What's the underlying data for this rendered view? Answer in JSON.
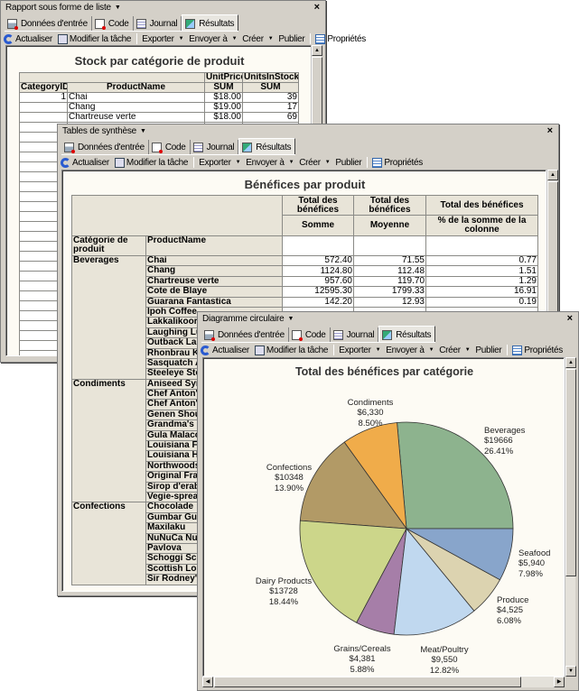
{
  "tabs": [
    "Données d'entrée",
    "Code",
    "Journal",
    "Résultats"
  ],
  "toolbar": {
    "refresh": "Actualiser",
    "modify": "Modifier la tâche",
    "export": "Exporter",
    "send": "Envoyer à",
    "create": "Créer",
    "publish": "Publier",
    "properties": "Propriétés"
  },
  "windows": [
    {
      "title": "Rapport sous forme de liste"
    },
    {
      "title": "Tables de synthèse"
    },
    {
      "title": "Diagramme circulaire"
    }
  ],
  "list_report": {
    "title": "Stock par catégorie de produit",
    "header_top": [
      "UnitPrice",
      "UnitsInStock"
    ],
    "headers": [
      "CategoryID",
      "ProductName",
      "SUM",
      "SUM"
    ],
    "rows": [
      [
        "1",
        "Chai",
        "$18.00",
        "39"
      ],
      [
        "",
        "Chang",
        "$19.00",
        "17"
      ],
      [
        "",
        "Chartreuse verte",
        "$18.00",
        "69"
      ]
    ]
  },
  "summary": {
    "title": "Bénéfices par produit",
    "col_headers": [
      {
        "top": "Total des bénéfices",
        "sub": "Somme"
      },
      {
        "top": "Total des bénéfices",
        "sub": "Moyenne"
      },
      {
        "top": "Total des bénéfices",
        "sub": "% de la somme de la colonne"
      }
    ],
    "row_headers": [
      "Catégorie de produit",
      "ProductName"
    ],
    "groups": [
      {
        "category": "Beverages",
        "products": [
          {
            "name": "Chai",
            "values": [
              "572.40",
              "71.55",
              "0.77"
            ]
          },
          {
            "name": "Chang",
            "values": [
              "1124.80",
              "112.48",
              "1.51"
            ]
          },
          {
            "name": "Chartreuse verte",
            "values": [
              "957.60",
              "119.70",
              "1.29"
            ]
          },
          {
            "name": "Cote de Blaye",
            "values": [
              "12595.30",
              "1799.33",
              "16.91"
            ]
          },
          {
            "name": "Guarana Fantastica",
            "values": [
              "142.20",
              "12.93",
              "0.19"
            ]
          },
          {
            "name": "Ipoh Coffee"
          },
          {
            "name": "Lakkalikoori"
          },
          {
            "name": "Laughing Lu"
          },
          {
            "name": "Outback Lag"
          },
          {
            "name": "Rhonbrau Kl"
          },
          {
            "name": "Sasquatch Al"
          },
          {
            "name": "Steeleye Sto"
          }
        ]
      },
      {
        "category": "Condiments",
        "products": [
          {
            "name": "Aniseed Syru"
          },
          {
            "name": "Chef Anton's"
          },
          {
            "name": "Chef Anton's"
          },
          {
            "name": "Genen Shou"
          },
          {
            "name": "Grandma's B"
          },
          {
            "name": "Gula Malacc"
          },
          {
            "name": "Louisiana Fi Sauce"
          },
          {
            "name": "Louisiana Ho"
          },
          {
            "name": "Northwoods"
          },
          {
            "name": "Original Frar"
          },
          {
            "name": "Sirop d'erabl"
          },
          {
            "name": "Vegie-spreac"
          }
        ]
      },
      {
        "category": "Confections",
        "products": [
          {
            "name": "Chocolade"
          },
          {
            "name": "Gumbar Gun"
          },
          {
            "name": "Maxilaku"
          },
          {
            "name": "NuNuCa NuB"
          },
          {
            "name": "Pavlova"
          },
          {
            "name": "Schoggi Sch"
          },
          {
            "name": "Scottish Lon"
          },
          {
            "name": "Sir Rodney's"
          }
        ]
      }
    ]
  },
  "chart_data": {
    "type": "pie",
    "title": "Total des bénéfices par catégorie",
    "direction": "counterclockwise from 3 o'clock",
    "slices": [
      {
        "label": "Beverages",
        "value": 19666,
        "value_label": "$19666",
        "percent": "26.41%",
        "color": "#8db38e"
      },
      {
        "label": "Condiments",
        "value": 6330,
        "value_label": "$6,330",
        "percent": "8.50%",
        "color": "#f0ac4a"
      },
      {
        "label": "Confections",
        "value": 10348,
        "value_label": "$10348",
        "percent": "13.90%",
        "color": "#b29a66"
      },
      {
        "label": "Dairy Products",
        "value": 13728,
        "value_label": "$13728",
        "percent": "18.44%",
        "color": "#ccd68a"
      },
      {
        "label": "Grains/Cereals",
        "value": 4381,
        "value_label": "$4,381",
        "percent": "5.88%",
        "color": "#a67ea8"
      },
      {
        "label": "Meat/Poultry",
        "value": 9550,
        "value_label": "$9,550",
        "percent": "12.82%",
        "color": "#c0d8ef"
      },
      {
        "label": "Produce",
        "value": 4525,
        "value_label": "$4,525",
        "percent": "6.08%",
        "color": "#dcd3b0"
      },
      {
        "label": "Seafood",
        "value": 5940,
        "value_label": "$5,940",
        "percent": "7.98%",
        "color": "#88a5cb"
      }
    ]
  }
}
